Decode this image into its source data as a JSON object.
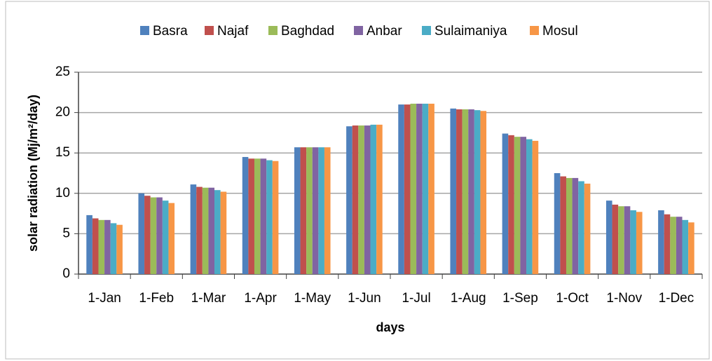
{
  "chart_data": {
    "type": "bar",
    "y_label": "solar radiation (Mj/m²/day)",
    "x_label": "days",
    "categories": [
      "1-Jan",
      "1-Feb",
      "1-Mar",
      "1-Apr",
      "1-May",
      "1-Jun",
      "1-Jul",
      "1-Aug",
      "1-Sep",
      "1-Oct",
      "1-Nov",
      "1-Dec"
    ],
    "series": [
      {
        "name": "Basra",
        "color": "#4f81bd",
        "values": [
          7.3,
          10.0,
          11.1,
          14.5,
          15.7,
          18.3,
          21.0,
          20.5,
          17.4,
          12.5,
          9.1,
          7.9
        ]
      },
      {
        "name": "Najaf",
        "color": "#c0504d",
        "values": [
          6.9,
          9.7,
          10.8,
          14.3,
          15.7,
          18.4,
          21.0,
          20.4,
          17.2,
          12.1,
          8.6,
          7.4
        ]
      },
      {
        "name": "Baghdad",
        "color": "#9bbb59",
        "values": [
          6.7,
          9.5,
          10.7,
          14.3,
          15.7,
          18.4,
          21.1,
          20.4,
          17.0,
          11.9,
          8.4,
          7.1
        ]
      },
      {
        "name": "Anbar",
        "color": "#8064a2",
        "values": [
          6.7,
          9.5,
          10.7,
          14.3,
          15.7,
          18.4,
          21.1,
          20.4,
          17.0,
          11.9,
          8.4,
          7.1
        ]
      },
      {
        "name": "Sulaimaniya",
        "color": "#4bacc6",
        "values": [
          6.3,
          9.1,
          10.4,
          14.1,
          15.7,
          18.5,
          21.1,
          20.3,
          16.7,
          11.5,
          7.9,
          6.7
        ]
      },
      {
        "name": "Mosul",
        "color": "#f79646",
        "values": [
          6.1,
          8.8,
          10.2,
          14.0,
          15.7,
          18.5,
          21.1,
          20.2,
          16.5,
          11.2,
          7.7,
          6.4
        ]
      }
    ],
    "ylim": [
      0,
      25
    ],
    "yticks": [
      0,
      5,
      10,
      15,
      20,
      25
    ],
    "grid": true,
    "legend": "top"
  }
}
